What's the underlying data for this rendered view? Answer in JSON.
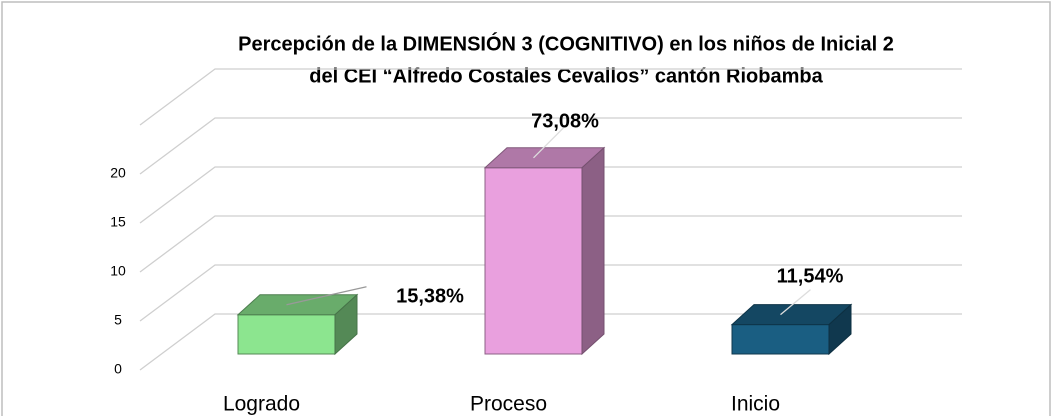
{
  "chart_data": {
    "type": "bar3d",
    "title": [
      "Percepción de la DIMENSIÓN 3 (COGNITIVO) en los niños de Inicial 2",
      "del CEI “Alfredo Costales Cevallos” cantón Riobamba"
    ],
    "categories": [
      "Logrado",
      "Proceso",
      "Inicio"
    ],
    "values": [
      4,
      19,
      3
    ],
    "annotations": [
      "15,38%",
      "73,08%",
      "11,54%"
    ],
    "colors": [
      "#8ce58f",
      "#e9a0de",
      "#1a5e82"
    ],
    "ylim": [
      0,
      20
    ],
    "yticks": [
      0,
      5,
      10,
      15,
      20
    ],
    "grid": true
  }
}
